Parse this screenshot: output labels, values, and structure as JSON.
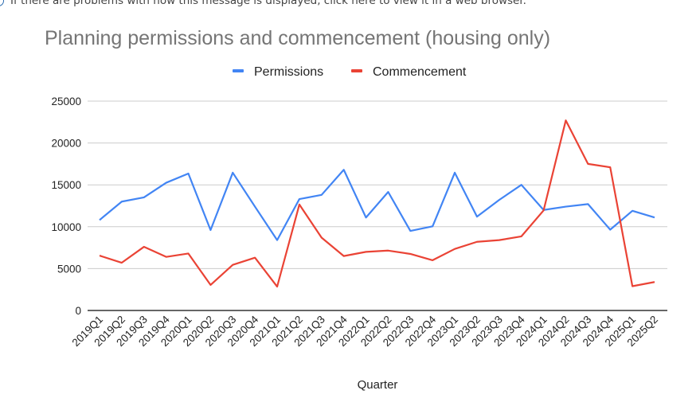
{
  "banner": {
    "text": "If there are problems with how this message is displayed, click here to view it in a web browser.",
    "icon": "info-icon"
  },
  "chart_data": {
    "type": "line",
    "title": "Planning permissions and commencement (housing only)",
    "xlabel": "Quarter",
    "ylabel": "",
    "ylim": [
      0,
      25000
    ],
    "yticks": [
      0,
      5000,
      10000,
      15000,
      20000,
      25000
    ],
    "grid": true,
    "legend_position": "top",
    "categories": [
      "2019Q1",
      "2019Q2",
      "2019Q3",
      "2019Q4",
      "2020Q1",
      "2020Q2",
      "2020Q3",
      "2020Q4",
      "2021Q1",
      "2021Q2",
      "2021Q3",
      "2021Q4",
      "2022Q1",
      "2022Q2",
      "2022Q3",
      "2022Q4",
      "2023Q1",
      "2023Q2",
      "2023Q3",
      "2023Q4",
      "2024Q1",
      "2024Q2",
      "2024Q3",
      "2024Q4",
      "2025Q1",
      "2025Q2"
    ],
    "series": [
      {
        "name": "Permissions",
        "color": "#4285f4",
        "values": [
          10800,
          13000,
          13500,
          15250,
          16350,
          9600,
          16450,
          12400,
          8400,
          13300,
          13800,
          16800,
          11100,
          14150,
          9500,
          10050,
          16450,
          11200,
          13200,
          15000,
          12000,
          12400,
          12700,
          9650,
          11900,
          11100
        ]
      },
      {
        "name": "Commencement",
        "color": "#ea4335",
        "values": [
          6550,
          5700,
          7600,
          6400,
          6800,
          3050,
          5450,
          6300,
          2850,
          12650,
          8700,
          6500,
          7000,
          7150,
          6750,
          6000,
          7350,
          8200,
          8400,
          8850,
          11950,
          22700,
          17500,
          17100,
          2900,
          3400
        ]
      }
    ]
  }
}
